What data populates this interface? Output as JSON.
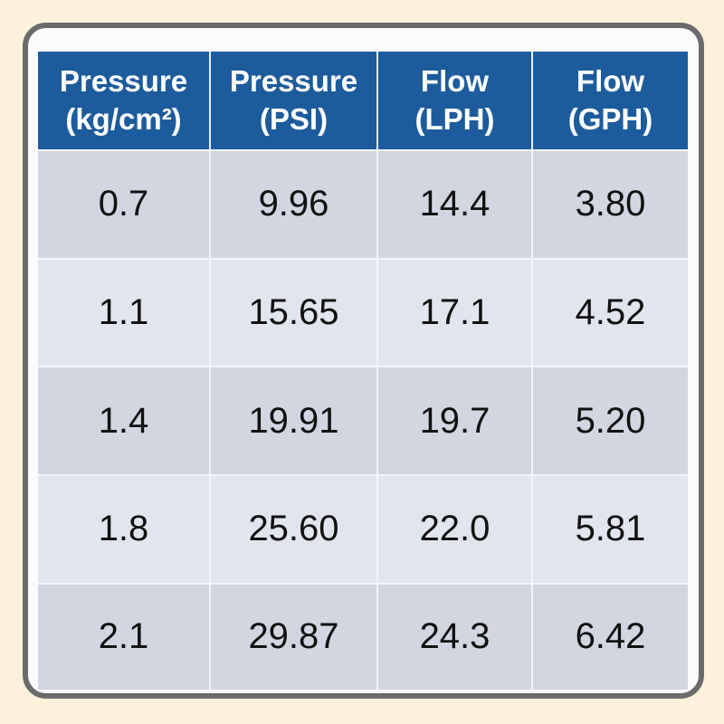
{
  "table": {
    "header": [
      [
        "Pressure",
        "(kg/cm²)"
      ],
      [
        "Pressure",
        "(PSI)"
      ],
      [
        "Flow",
        "(LPH)"
      ],
      [
        "Flow",
        "(GPH)"
      ]
    ],
    "rows": [
      [
        "0.7",
        "9.96",
        "14.4",
        "3.80"
      ],
      [
        "1.1",
        "15.65",
        "17.1",
        "4.52"
      ],
      [
        "1.4",
        "19.91",
        "19.7",
        "5.20"
      ],
      [
        "1.8",
        "25.60",
        "22.0",
        "5.81"
      ],
      [
        "2.1",
        "29.87",
        "24.3",
        "6.42"
      ]
    ]
  }
}
